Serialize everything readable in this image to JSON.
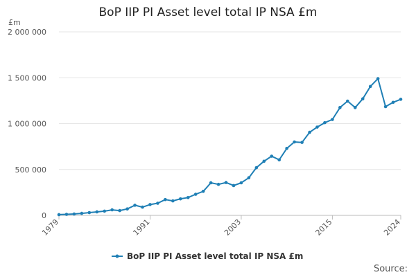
{
  "chart_data": {
    "type": "line",
    "title": "BoP IIP PI Asset level total IP NSA £m",
    "ylabel": "£m",
    "xlabel": "",
    "ylim": [
      0,
      2000000
    ],
    "yticks": [
      0,
      500000,
      1000000,
      1500000,
      2000000
    ],
    "ytick_labels": [
      "0",
      "500 000",
      "1 000 000",
      "1 500 000",
      "2 000 000"
    ],
    "xlim": [
      1979,
      2024
    ],
    "xticks": [
      1979,
      1991,
      2003,
      2015,
      2024
    ],
    "xtick_labels": [
      "1979",
      "1991",
      "2003",
      "2015",
      "2024"
    ],
    "grid": true,
    "legend_position": "bottom-center",
    "series": [
      {
        "name": "BoP IIP PI Asset level total IP NSA £m",
        "color": "#1f7fb5",
        "x": [
          1979,
          1980,
          1981,
          1982,
          1983,
          1984,
          1985,
          1986,
          1987,
          1988,
          1989,
          1990,
          1991,
          1992,
          1993,
          1994,
          1995,
          1996,
          1997,
          1998,
          1999,
          2000,
          2001,
          2002,
          2003,
          2004,
          2005,
          2006,
          2007,
          2008,
          2009,
          2010,
          2011,
          2012,
          2013,
          2014,
          2015,
          2016,
          2017,
          2018,
          2019,
          2020,
          2021,
          2022,
          2023,
          2024
        ],
        "values": [
          8000,
          11000,
          15000,
          22000,
          30000,
          38000,
          46000,
          60000,
          52000,
          70000,
          110000,
          90000,
          118000,
          132000,
          172000,
          158000,
          180000,
          194000,
          230000,
          262000,
          355000,
          338000,
          358000,
          325000,
          355000,
          410000,
          520000,
          590000,
          645000,
          605000,
          730000,
          800000,
          795000,
          905000,
          962000,
          1010000,
          1045000,
          1175000,
          1245000,
          1175000,
          1270000,
          1405000,
          1490000,
          1185000,
          1232000,
          1265000
        ]
      }
    ]
  },
  "source_label": "Source:"
}
